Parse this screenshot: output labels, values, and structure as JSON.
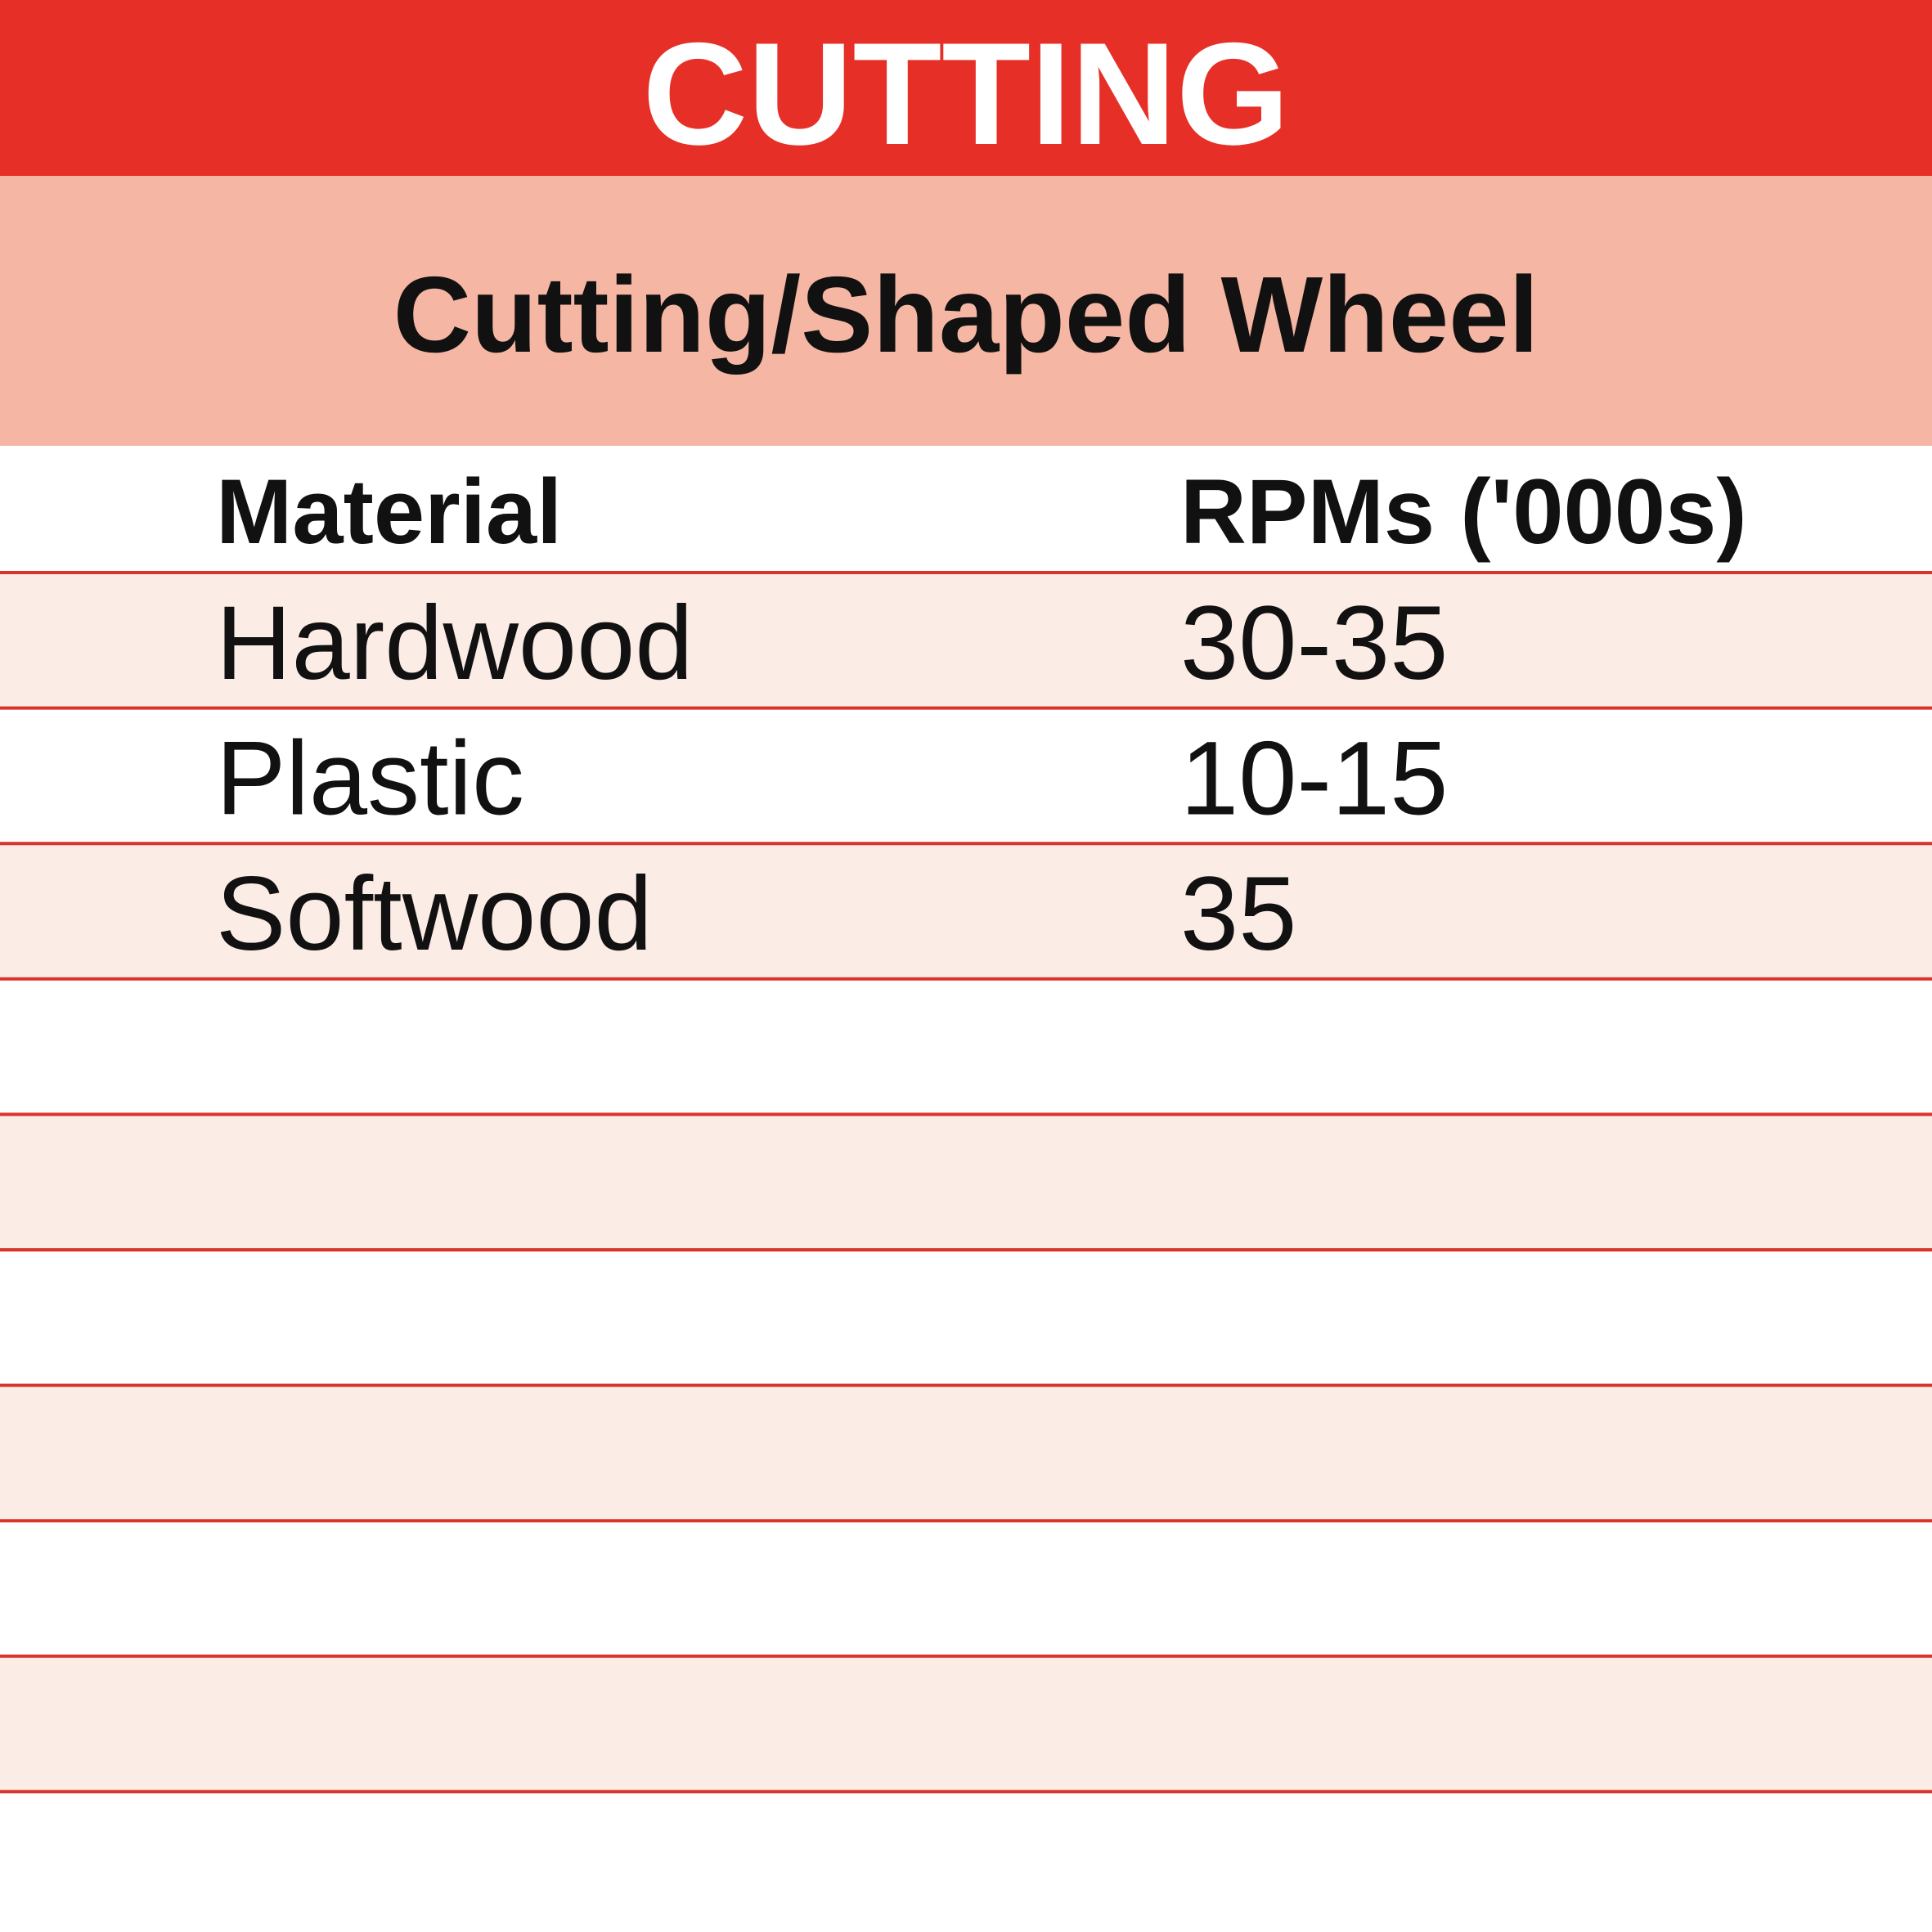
{
  "header": {
    "title": "CUTTING",
    "subtitle": "Cutting/Shaped Wheel"
  },
  "table": {
    "columns": [
      "Material",
      "RPMs ('000s)"
    ],
    "rows": [
      [
        "Hardwood",
        "30-35"
      ],
      [
        "Plastic",
        "10-15"
      ],
      [
        "Softwood",
        "35"
      ]
    ]
  }
}
